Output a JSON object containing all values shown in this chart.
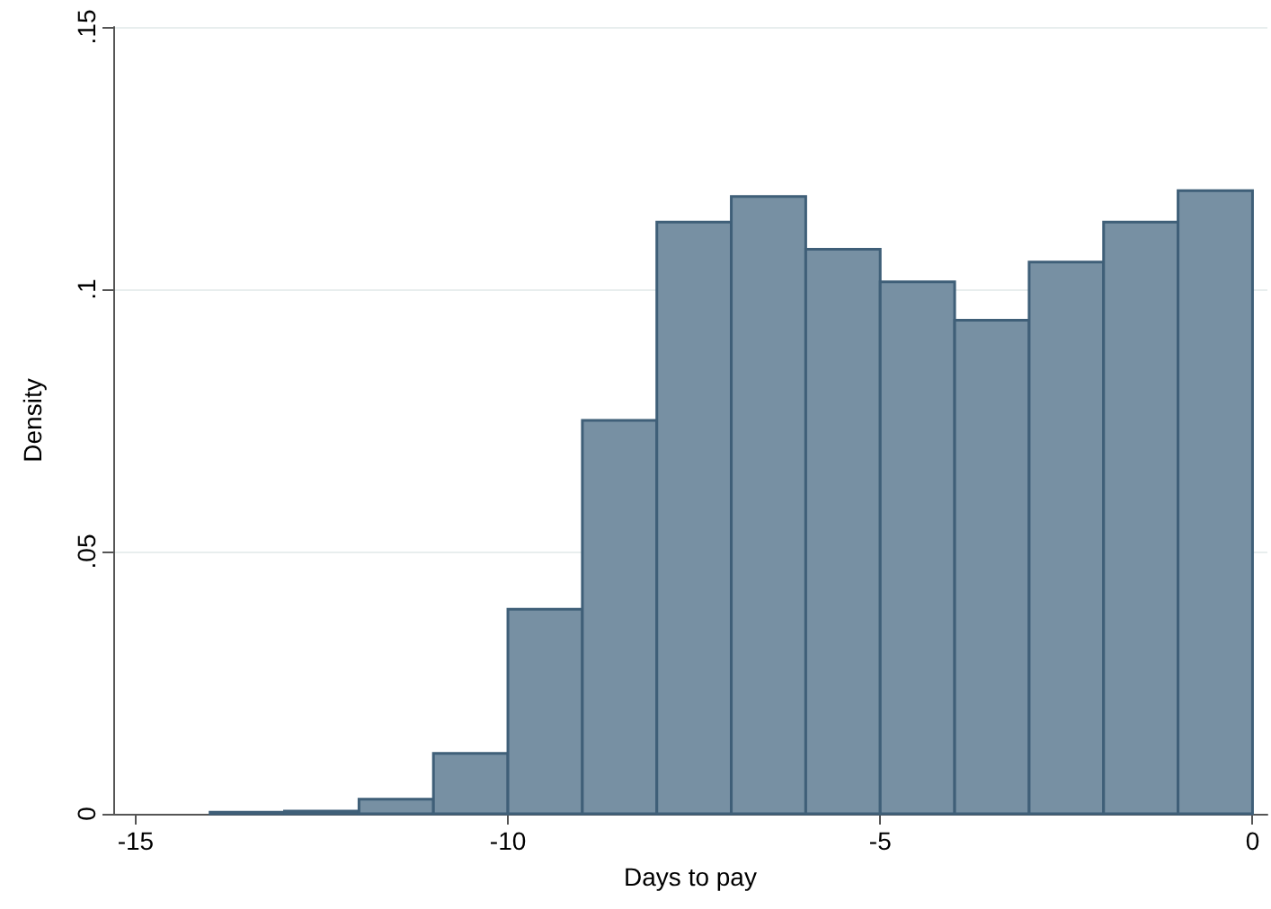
{
  "chart_data": {
    "type": "histogram",
    "xlabel": "Days to pay",
    "ylabel": "Density",
    "color": "#7790a3",
    "bins": [
      -14,
      -13,
      -12,
      -11,
      -10,
      -9,
      -8,
      -7,
      -6,
      -5,
      -4,
      -3,
      -2,
      -1,
      0
    ],
    "values": [
      0.0003,
      0.0005,
      0.0028,
      0.0115,
      0.039,
      0.075,
      0.1128,
      0.1177,
      0.1076,
      0.1014,
      0.0941,
      0.1052,
      0.1128,
      0.1188
    ],
    "xlim": [
      -15.3,
      0.2
    ],
    "xticks": [
      -15,
      -10,
      -5,
      0
    ],
    "ylim": [
      0,
      0.15
    ],
    "yticks": [
      0,
      {
        "value": 0.05,
        "label": ".05"
      },
      {
        "value": 0.1,
        "label": ".1"
      },
      {
        "value": 0.15,
        "label": ".15"
      }
    ],
    "grid": "y"
  }
}
